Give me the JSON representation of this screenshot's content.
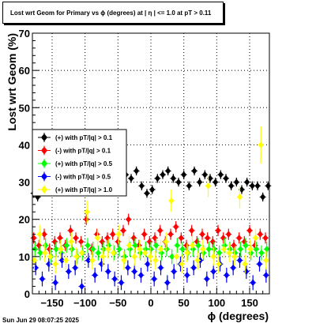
{
  "chart_data": {
    "type": "scatter",
    "title": "Lost wrt Geom for Primary vs ϕ (degrees) at |  η  | <= 1.0 at pT > 0.11",
    "xlabel": "ϕ (degrees)",
    "ylabel": "Lost wrt Geom (%)",
    "xlim": [
      -180,
      180
    ],
    "ylim": [
      0,
      70
    ],
    "x_ticks": [
      -150,
      -100,
      -50,
      0,
      50,
      100,
      150
    ],
    "x_tick_labels": [
      "−150",
      "−100",
      "−50",
      "0",
      "50",
      "100",
      "150"
    ],
    "y_ticks": [
      0,
      10,
      20,
      30,
      40,
      50,
      60,
      70
    ],
    "y_tick_labels": [
      "0",
      "10",
      "20",
      "30",
      "40",
      "50",
      "60",
      "70"
    ],
    "grid": true,
    "legend_position": "left, mid-height",
    "series": [
      {
        "name": "(+) with pT/|q| > 0.1",
        "color": "#000000",
        "marker": "diamond",
        "x": [
          -178,
          -172,
          -166,
          -158,
          -150,
          -142,
          -134,
          -126,
          -118,
          -110,
          -102,
          -94,
          -86,
          -78,
          -70,
          -62,
          -54,
          -46,
          -38,
          -30,
          -22,
          -14,
          -6,
          2,
          10,
          18,
          26,
          34,
          42,
          50,
          58,
          66,
          74,
          82,
          90,
          98,
          106,
          114,
          122,
          130,
          138,
          146,
          154,
          162,
          170,
          178
        ],
        "y": [
          27,
          26,
          28,
          30,
          29,
          31,
          30,
          29,
          30,
          31,
          28,
          30,
          29,
          31,
          32,
          30,
          31,
          29,
          32,
          31,
          33,
          29,
          27,
          28,
          31,
          32,
          33,
          31,
          30,
          32,
          29,
          33,
          30,
          32,
          31,
          30,
          32,
          31,
          29,
          30,
          28,
          30,
          29,
          29,
          26,
          29
        ],
        "err": [
          1.2,
          1.2,
          1.2,
          1.2,
          1.2,
          1.2,
          1.2,
          1.2,
          1.2,
          1.2,
          1.2,
          1.2,
          1.2,
          1.2,
          1.2,
          1.2,
          1.2,
          1.2,
          1.2,
          1.2,
          1.2,
          1.2,
          1.2,
          1.2,
          1.2,
          1.2,
          1.2,
          1.2,
          1.2,
          1.2,
          1.2,
          1.2,
          1.2,
          1.2,
          1.2,
          1.2,
          1.2,
          1.2,
          1.2,
          1.2,
          1.2,
          1.2,
          1.2,
          1.2,
          1.2,
          1.2
        ]
      },
      {
        "name": "(-) with pT/|q| > 0.1",
        "color": "#ff0000",
        "marker": "diamond",
        "x": [
          -178,
          -170,
          -162,
          -154,
          -146,
          -138,
          -130,
          -122,
          -114,
          -106,
          -98,
          -90,
          -82,
          -74,
          -66,
          -58,
          -50,
          -42,
          -34,
          -26,
          -18,
          -10,
          -2,
          6,
          14,
          22,
          30,
          38,
          46,
          54,
          62,
          70,
          78,
          86,
          94,
          102,
          110,
          118,
          126,
          134,
          142,
          150,
          158,
          166,
          174
        ],
        "y": [
          15,
          13,
          16,
          12,
          14,
          15,
          13,
          17,
          15,
          14,
          20,
          12,
          16,
          14,
          15,
          16,
          14,
          17,
          20,
          15,
          13,
          16,
          14,
          15,
          17,
          14,
          16,
          18,
          15,
          13,
          17,
          14,
          16,
          15,
          14,
          17,
          15,
          16,
          13,
          15,
          14,
          17,
          13,
          16,
          15
        ],
        "err": [
          1.5,
          1.5,
          1.5,
          1.5,
          1.5,
          1.5,
          1.5,
          1.5,
          1.5,
          1.5,
          1.5,
          1.5,
          1.5,
          1.5,
          1.5,
          1.5,
          1.5,
          1.5,
          1.5,
          1.5,
          1.5,
          1.5,
          1.5,
          1.5,
          1.5,
          1.5,
          1.5,
          1.5,
          1.5,
          1.5,
          1.5,
          1.5,
          1.5,
          1.5,
          1.5,
          1.5,
          1.5,
          1.5,
          1.5,
          1.5,
          1.5,
          1.5,
          1.5,
          1.5,
          1.5
        ]
      },
      {
        "name": "(+) with pT/|q| > 0.5",
        "color": "#00ff00",
        "marker": "diamond",
        "x": [
          -176,
          -168,
          -160,
          -152,
          -144,
          -136,
          -128,
          -120,
          -112,
          -104,
          -96,
          -88,
          -80,
          -72,
          -64,
          -56,
          -48,
          -40,
          -32,
          -24,
          -16,
          -8,
          0,
          8,
          16,
          24,
          32,
          40,
          48,
          56,
          64,
          72,
          80,
          88,
          96,
          104,
          112,
          120,
          128,
          136,
          144,
          152,
          160,
          168,
          176
        ],
        "y": [
          12,
          11,
          13,
          10,
          12,
          11,
          13,
          12,
          10,
          11,
          13,
          12,
          11,
          12,
          13,
          11,
          12,
          10,
          12,
          13,
          11,
          12,
          12,
          13,
          11,
          12,
          10,
          13,
          12,
          11,
          12,
          13,
          11,
          12,
          12,
          11,
          13,
          12,
          11,
          12,
          13,
          11,
          12,
          11,
          12
        ],
        "err": [
          2,
          2,
          2,
          2,
          2,
          2,
          2,
          2,
          2,
          2,
          2,
          2,
          2,
          2,
          2,
          2,
          2,
          2,
          2,
          2,
          2,
          2,
          2,
          2,
          2,
          2,
          2,
          2,
          2,
          2,
          2,
          2,
          2,
          2,
          2,
          2,
          2,
          2,
          2,
          2,
          2,
          2,
          2,
          2,
          2
        ]
      },
      {
        "name": "(-) with pT/|q| > 0.5",
        "color": "#0000ff",
        "marker": "diamond",
        "x": [
          -175,
          -165,
          -155,
          -145,
          -135,
          -125,
          -115,
          -105,
          -95,
          -85,
          -75,
          -65,
          -55,
          -45,
          -35,
          -25,
          -15,
          -5,
          5,
          15,
          25,
          35,
          45,
          55,
          65,
          75,
          85,
          95,
          105,
          115,
          125,
          135,
          145,
          155,
          165,
          175
        ],
        "y": [
          7,
          4,
          8,
          3,
          9,
          6,
          7,
          2,
          9,
          5,
          8,
          6,
          4,
          3,
          7,
          6,
          5,
          8,
          4,
          7,
          3,
          6,
          8,
          5,
          7,
          9,
          4,
          6,
          8,
          5,
          7,
          9,
          6,
          3,
          8,
          5
        ],
        "err": [
          2,
          2,
          2,
          2,
          2,
          2,
          2,
          2,
          2,
          2,
          2,
          2,
          2,
          2,
          2,
          2,
          2,
          2,
          2,
          2,
          2,
          2,
          2,
          2,
          2,
          2,
          2,
          2,
          2,
          2,
          2,
          2,
          2,
          2,
          2,
          2
        ]
      },
      {
        "name": "(+) with pT/|q| > 1.0",
        "color": "#ffff00",
        "marker": "diamond",
        "x": [
          -177,
          -169,
          -161,
          -153,
          -145,
          -137,
          -129,
          -121,
          -113,
          -105,
          -97,
          -89,
          -81,
          -73,
          -65,
          -57,
          -49,
          -41,
          -33,
          -25,
          -17,
          -9,
          -1,
          7,
          15,
          23,
          31,
          39,
          47,
          55,
          63,
          71,
          79,
          87,
          95,
          103,
          111,
          119,
          127,
          135,
          143,
          151,
          159,
          167,
          175
        ],
        "y": [
          9,
          16,
          11,
          10,
          8,
          12,
          9,
          14,
          10,
          11,
          22,
          9,
          15,
          10,
          12,
          11,
          16,
          9,
          13,
          10,
          12,
          11,
          10,
          9,
          12,
          14,
          25,
          10,
          8,
          11,
          13,
          9,
          12,
          29,
          10,
          8,
          12,
          11,
          10,
          26,
          8,
          12,
          15,
          40,
          9
        ],
        "err": [
          2.5,
          2.5,
          2.5,
          2.5,
          2.5,
          2.5,
          2.5,
          2.5,
          2.5,
          2.5,
          3,
          2.5,
          2.5,
          2.5,
          2.5,
          2.5,
          2.5,
          2.5,
          2.5,
          2.5,
          2.5,
          2.5,
          2.5,
          2.5,
          2.5,
          2.5,
          3,
          2.5,
          2.5,
          2.5,
          2.5,
          2.5,
          2.5,
          3,
          2.5,
          2.5,
          2.5,
          2.5,
          2.5,
          3,
          2.5,
          2.5,
          2.5,
          5,
          2.5
        ]
      }
    ]
  },
  "footer": {
    "timestamp": "Sun Jun 29 08:07:25 2025"
  }
}
